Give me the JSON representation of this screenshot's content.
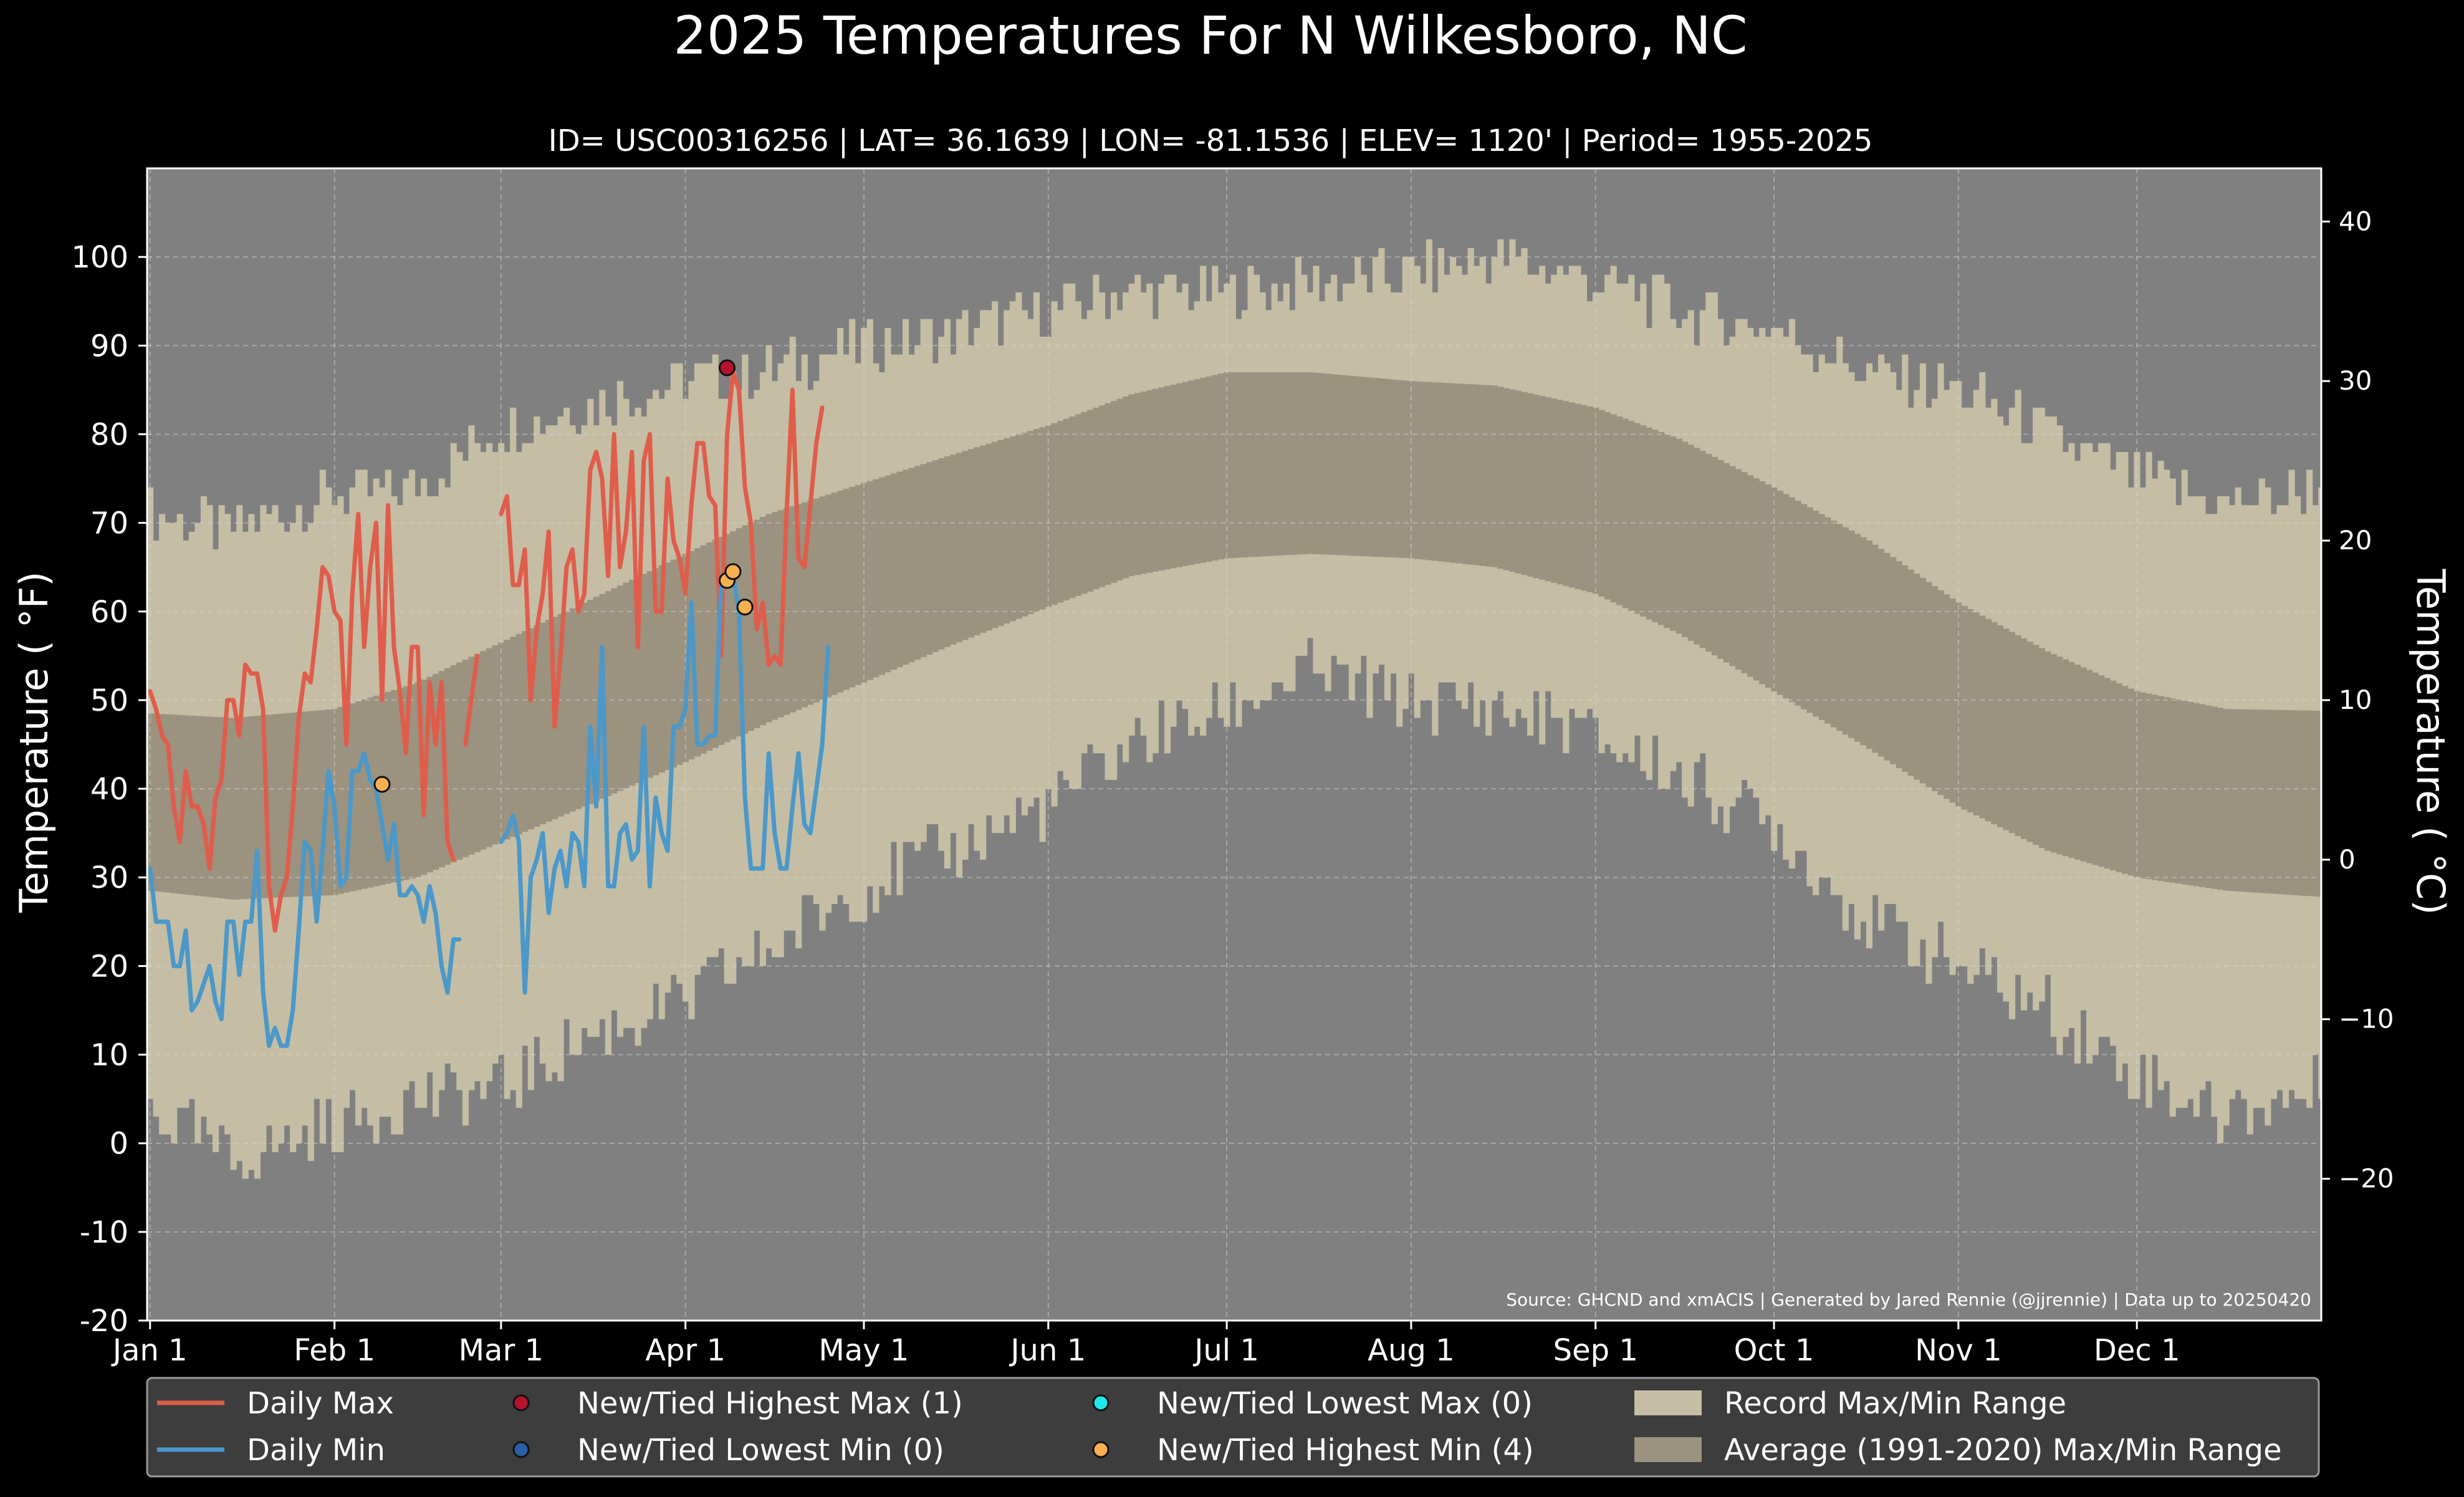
{
  "chart_data": {
    "type": "area",
    "title": "2025 Temperatures For N Wilkesboro, NC",
    "subtitle": "ID= USC00316256 | LAT= 36.1639 | LON= -81.1536 | ELEV= 1120' | Period= 1955-2025",
    "ylabel_left": "Temperature ($^\\circ$F)",
    "ylabel_right": "Temperature ($^\\circ$C)",
    "ylabel_left_text": "Temperature ( °F)",
    "ylabel_right_text": "Temperature ( °C)",
    "source": "Source: GHCND and xmACIS | Generated by Jared Rennie (@jjrennie) | Data up to 20250420",
    "xlim_day": [
      0.5,
      366
    ],
    "ylim_f": [
      -20,
      110
    ],
    "grid": true,
    "legend_placement": "bottom",
    "x_ticks": [
      {
        "label": "Jan 1",
        "day": 1
      },
      {
        "label": "Feb 1",
        "day": 32
      },
      {
        "label": "Mar 1",
        "day": 60
      },
      {
        "label": "Apr 1",
        "day": 91
      },
      {
        "label": "May 1",
        "day": 121
      },
      {
        "label": "Jun 1",
        "day": 152
      },
      {
        "label": "Jul 1",
        "day": 182
      },
      {
        "label": "Aug 1",
        "day": 213
      },
      {
        "label": "Sep 1",
        "day": 244
      },
      {
        "label": "Oct 1",
        "day": 274
      },
      {
        "label": "Nov 1",
        "day": 305
      },
      {
        "label": "Dec 1",
        "day": 335
      }
    ],
    "y_ticks_f": [
      "-20",
      "-10",
      "0",
      "10",
      "20",
      "30",
      "40",
      "50",
      "60",
      "70",
      "80",
      "90",
      "100"
    ],
    "y_ticks_c": [
      "−20",
      "−10",
      "0",
      "10",
      "20",
      "30",
      "40"
    ],
    "record_max_anchors": {
      "day": [
        1,
        15,
        32,
        46,
        60,
        74,
        91,
        105,
        121,
        135,
        152,
        166,
        182,
        196,
        213,
        227,
        240,
        250,
        263,
        274,
        290,
        305,
        320,
        335,
        350,
        366
      ],
      "value": [
        71,
        69,
        73,
        74,
        81,
        83,
        86,
        87,
        90,
        91,
        94,
        96,
        96,
        97,
        98,
        100,
        98,
        96,
        93,
        92,
        87,
        85,
        80,
        75,
        72,
        74
      ]
    },
    "record_min_anchors": {
      "day": [
        1,
        15,
        32,
        46,
        60,
        74,
        91,
        105,
        121,
        135,
        152,
        166,
        182,
        196,
        213,
        227,
        240,
        250,
        263,
        274,
        290,
        305,
        320,
        335,
        350,
        366
      ],
      "value": [
        4,
        -2,
        2,
        5,
        6,
        12,
        16,
        22,
        29,
        33,
        38,
        45,
        49,
        53,
        50,
        49,
        47,
        44,
        40,
        36,
        25,
        20,
        15,
        8,
        3,
        6
      ]
    },
    "normal_max_anchors": {
      "day": [
        1,
        15,
        32,
        46,
        60,
        74,
        91,
        105,
        121,
        135,
        152,
        166,
        182,
        196,
        213,
        227,
        244,
        258,
        274,
        290,
        305,
        320,
        335,
        350,
        366
      ],
      "value": [
        48.5,
        48,
        49,
        52,
        56.5,
        61,
        66.5,
        71,
        74.5,
        77.5,
        81,
        84.5,
        87,
        87,
        86,
        85.5,
        83,
        79.5,
        74,
        68,
        61,
        55.5,
        51,
        49,
        48.8
      ]
    },
    "normal_min_anchors": {
      "day": [
        1,
        15,
        32,
        46,
        60,
        74,
        91,
        105,
        121,
        135,
        152,
        166,
        182,
        196,
        213,
        227,
        244,
        258,
        274,
        290,
        305,
        320,
        335,
        350,
        366
      ],
      "value": [
        28.5,
        27.5,
        28,
        30,
        34,
        38,
        43,
        47.5,
        52,
        56,
        60.5,
        64,
        66,
        66.5,
        66,
        65,
        62,
        57.5,
        51,
        44.5,
        38,
        33,
        30,
        28.5,
        27.8
      ]
    },
    "series": [
      {
        "name": "Daily Max",
        "color": "#e05d4b",
        "start_day": 1,
        "values": [
          51,
          49,
          46,
          45,
          38,
          34,
          42,
          38,
          38,
          36,
          31,
          39,
          41,
          50,
          50,
          46,
          54,
          53,
          53,
          49,
          29,
          24,
          28,
          30,
          38,
          48,
          53,
          52,
          58,
          65,
          64,
          60,
          59,
          45,
          62,
          71,
          56,
          65,
          70,
          50,
          72,
          56,
          51,
          44,
          56,
          56,
          37,
          52,
          45,
          52,
          34,
          32,
          null,
          45,
          50,
          55,
          null,
          null,
          null,
          71,
          73,
          63,
          63,
          67,
          50,
          58,
          62,
          69,
          47,
          55,
          65,
          67,
          60,
          62,
          76,
          78,
          75,
          64,
          80,
          65,
          69,
          78,
          56,
          77,
          80,
          60,
          60,
          75,
          68,
          66,
          62,
          72,
          79,
          79,
          73,
          72,
          55,
          80,
          87,
          85,
          74,
          70,
          58,
          61,
          54,
          55,
          54,
          71,
          85,
          66,
          65,
          72,
          79,
          83
        ]
      },
      {
        "name": "Daily Min",
        "color": "#4b98c9",
        "start_day": 1,
        "values": [
          31,
          25,
          25,
          25,
          20,
          20,
          24,
          15,
          16,
          18,
          20,
          16,
          14,
          25,
          25,
          19,
          25,
          25,
          33,
          17,
          11,
          13,
          11,
          11,
          15,
          24,
          34,
          33,
          25,
          33,
          42,
          38,
          29,
          30,
          42,
          42,
          44,
          41,
          40,
          36,
          32,
          36,
          28,
          28,
          29,
          28,
          25,
          29,
          26,
          20,
          17,
          23,
          23,
          null,
          null,
          null,
          null,
          null,
          null,
          34,
          35,
          37,
          34,
          17,
          30,
          32,
          35,
          26,
          31,
          33,
          29,
          35,
          34,
          29,
          47,
          38,
          56,
          29,
          29,
          35,
          36,
          32,
          33,
          47,
          29,
          39,
          35,
          33,
          47,
          47,
          49,
          61,
          45,
          45,
          46,
          46,
          63,
          63,
          64,
          60,
          39,
          31,
          31,
          31,
          44,
          35,
          31,
          31,
          38,
          44,
          36,
          35,
          40,
          45,
          56
        ]
      }
    ],
    "records": [
      {
        "name": "New/Tied Highest Max",
        "day": 98,
        "value": 87.5
      },
      {
        "name": "New/Tied Highest Min",
        "day": 40,
        "value": 40.5
      },
      {
        "name": "New/Tied Highest Min",
        "day": 98,
        "value": 63.5
      },
      {
        "name": "New/Tied Highest Min",
        "day": 99,
        "value": 64.5
      },
      {
        "name": "New/Tied Highest Min",
        "day": 101,
        "value": 60.5
      }
    ],
    "legend": [
      {
        "label": "Daily Max",
        "kind": "line",
        "color": "#e05d4b"
      },
      {
        "label": "New/Tied Highest Max (1)",
        "kind": "dot",
        "color": "#b5122e"
      },
      {
        "label": "New/Tied Lowest Max (0)",
        "kind": "dot",
        "color": "#1ee8e8"
      },
      {
        "label": "Record Max/Min Range",
        "kind": "patch",
        "color": "#c5bea5"
      },
      {
        "label": "Daily Min",
        "kind": "line",
        "color": "#4b98c9"
      },
      {
        "label": "New/Tied Lowest Min (0)",
        "kind": "dot",
        "color": "#2a5ea6"
      },
      {
        "label": "New/Tied Highest Min (4)",
        "kind": "dot",
        "color": "#f6b050"
      },
      {
        "label": "Average (1991-2020) Max/Min Range",
        "kind": "patch",
        "color": "#9b927f"
      }
    ],
    "colors": {
      "background": "#000000",
      "plot_background": "#808080",
      "record_range": "#c5bea5",
      "normal_range": "#9b927f",
      "legend_background": "#3d3d3d",
      "text": "#ffffff"
    }
  }
}
